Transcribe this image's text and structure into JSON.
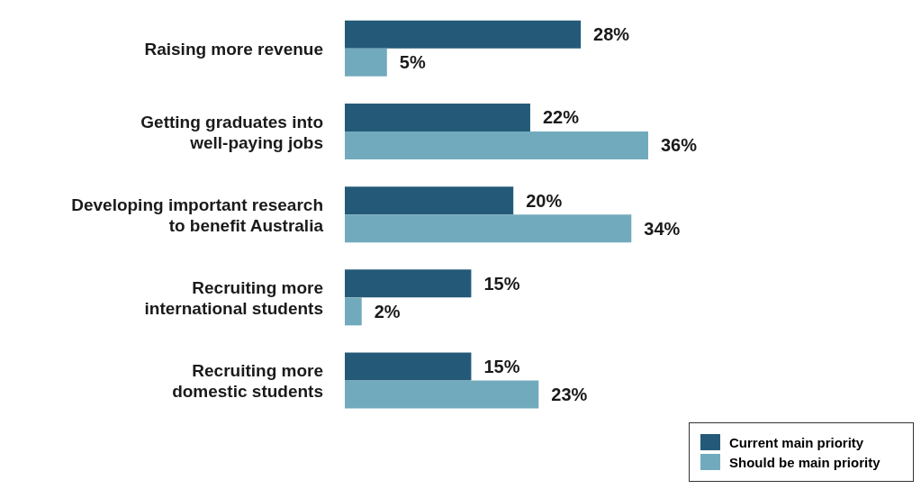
{
  "chart_data": {
    "type": "bar",
    "orientation": "horizontal",
    "categories": [
      "Raising more revenue",
      "Getting graduates into\nwell-paying jobs",
      "Developing important research\nto benefit Australia",
      "Recruiting more\ninternational students",
      "Recruiting more\ndomestic students"
    ],
    "series": [
      {
        "name": "Current main priority",
        "color": "#245a78",
        "values": [
          28,
          22,
          20,
          15,
          15
        ],
        "value_labels": [
          "28%",
          "22%",
          "20%",
          "15%",
          "15%"
        ]
      },
      {
        "name": "Should be main priority",
        "color": "#72aabd",
        "values": [
          5,
          36,
          34,
          2,
          23
        ],
        "value_labels": [
          "5%",
          "36%",
          "34%",
          "2%",
          "23%"
        ]
      }
    ],
    "legend": "bottom right"
  }
}
